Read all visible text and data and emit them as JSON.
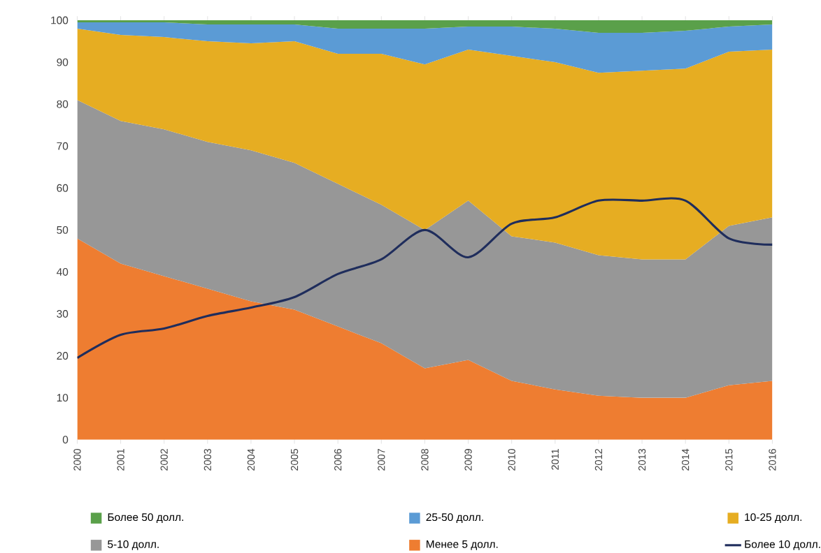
{
  "chart_data": {
    "type": "area",
    "stacked": true,
    "legend": "bottom",
    "grid": false,
    "categories": [
      "2000",
      "2001",
      "2002",
      "2003",
      "2004",
      "2005",
      "2006",
      "2007",
      "2008",
      "2009",
      "2010",
      "2011",
      "2012",
      "2013",
      "2014",
      "2015",
      "2016"
    ],
    "ylim": [
      0,
      100
    ],
    "yticks": [
      0,
      10,
      20,
      30,
      40,
      50,
      60,
      70,
      80,
      90,
      100
    ],
    "series": [
      {
        "name": "Менее 5 долл.",
        "color": "#ee7d31",
        "values": [
          48,
          42,
          39,
          36,
          33,
          31,
          27,
          23,
          17,
          19,
          14,
          12,
          10.5,
          10,
          10,
          13,
          14
        ]
      },
      {
        "name": "5-10 долл.",
        "color": "#979797",
        "values": [
          33,
          34,
          35,
          35,
          36,
          35,
          34,
          33,
          33,
          38,
          34.5,
          35,
          33.5,
          33,
          33,
          38,
          39
        ]
      },
      {
        "name": "10-25 долл.",
        "color": "#e6ad22",
        "values": [
          17,
          20.5,
          22,
          24,
          25.5,
          29,
          31,
          36,
          39.5,
          36,
          43,
          43,
          43.5,
          45,
          45.5,
          41.5,
          40
        ]
      },
      {
        "name": "25-50 долл.",
        "color": "#5b9bd5",
        "values": [
          1.5,
          3,
          3.5,
          4,
          4.5,
          4,
          6,
          6,
          8.5,
          5.5,
          7,
          8,
          9.5,
          9,
          9,
          6,
          6
        ]
      },
      {
        "name": "Более 50 долл.",
        "color": "#5aa04a",
        "values": [
          0.5,
          0.5,
          0.5,
          1,
          1,
          1,
          2,
          2,
          2,
          1.5,
          1.5,
          2,
          3,
          3,
          2.5,
          1.5,
          1
        ]
      },
      {
        "name": "Более 10 долл.",
        "type": "line",
        "color": "#1f2d5c",
        "values": [
          19.5,
          25,
          26.5,
          29.5,
          31.5,
          34,
          39.5,
          43,
          50,
          43.5,
          51.5,
          53,
          57,
          57,
          57,
          48,
          46.5
        ]
      }
    ]
  }
}
